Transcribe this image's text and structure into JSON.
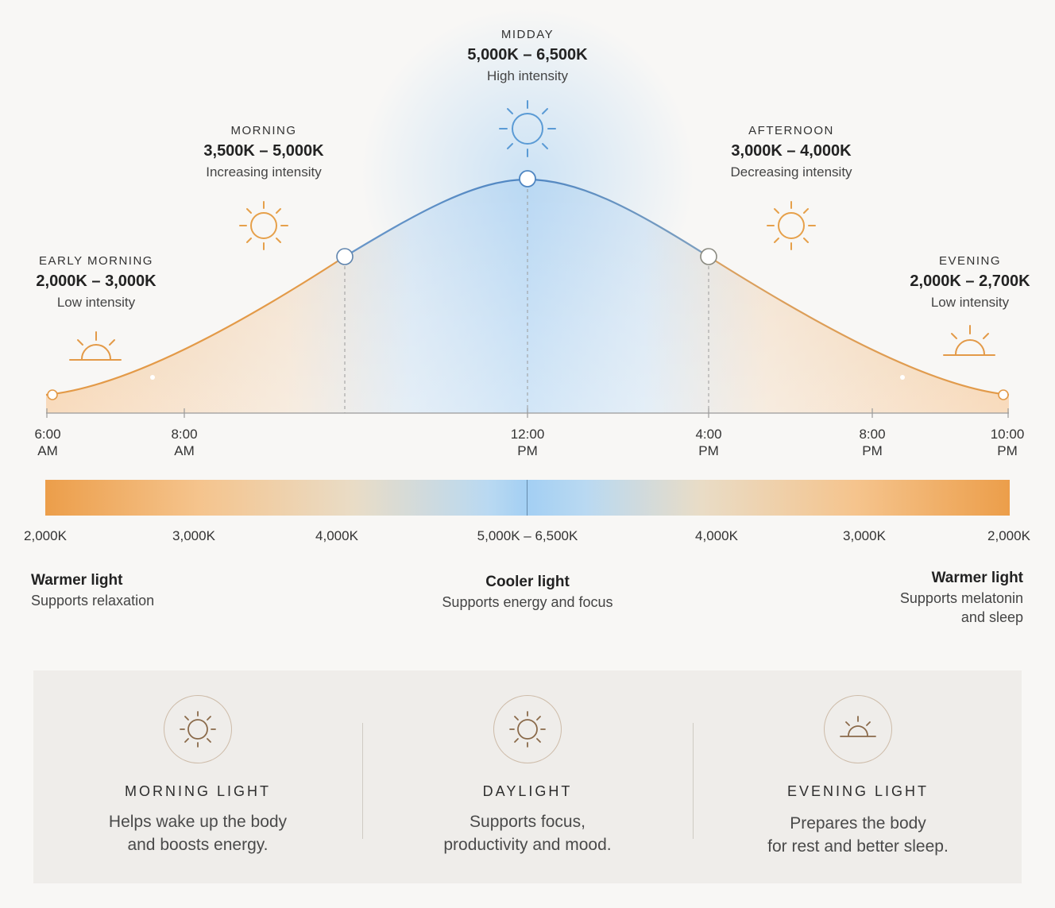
{
  "phases": [
    {
      "id": "early-morning",
      "name": "EARLY MORNING",
      "range": "2,000K – 3,000K",
      "intensity": "Low intensity"
    },
    {
      "id": "morning",
      "name": "MORNING",
      "range": "3,500K – 5,000K",
      "intensity": "Increasing intensity"
    },
    {
      "id": "midday",
      "name": "MIDDAY",
      "range": "5,000K – 6,500K",
      "intensity": "High intensity"
    },
    {
      "id": "afternoon",
      "name": "AFTERNOON",
      "range": "3,000K – 4,000K",
      "intensity": "Decreasing intensity"
    },
    {
      "id": "evening",
      "name": "EVENING",
      "range": "2,000K – 2,700K",
      "intensity": "Low intensity"
    }
  ],
  "times": [
    {
      "line1": "6:00",
      "line2": "AM"
    },
    {
      "line1": "8:00",
      "line2": "AM"
    },
    {
      "line1": "12:00",
      "line2": "PM"
    },
    {
      "line1": "4:00",
      "line2": "PM"
    },
    {
      "line1": "8:00",
      "line2": "PM"
    },
    {
      "line1": "10:00",
      "line2": "PM"
    }
  ],
  "kelvin_scale": [
    "2,000K",
    "3,000K",
    "4,000K",
    "5,000K – 6,500K",
    "4,000K",
    "3,000K",
    "2,000K"
  ],
  "notes": {
    "left": {
      "title": "Warmer light",
      "line1": "Supports relaxation"
    },
    "center": {
      "title": "Cooler light",
      "line1": "Supports energy and focus"
    },
    "right": {
      "title": "Warmer light",
      "line1": "Supports melatonin",
      "line2": "and sleep"
    }
  },
  "cards": [
    {
      "title": "MORNING LIGHT",
      "line1": "Helps wake up the body",
      "line2": "and boosts energy.",
      "icon": "sun-icon"
    },
    {
      "title": "DAYLIGHT",
      "line1": "Supports focus,",
      "line2": "productivity and mood.",
      "icon": "sun-icon"
    },
    {
      "title": "EVENING LIGHT",
      "line1": "Prepares the body",
      "line2": "for rest and better sleep.",
      "icon": "sunset-icon"
    }
  ],
  "colors": {
    "warm": "#e39a48",
    "cool": "#4f86c2",
    "cool_icon": "#5b9bd5",
    "card_icon": "#8a6a4a"
  }
}
